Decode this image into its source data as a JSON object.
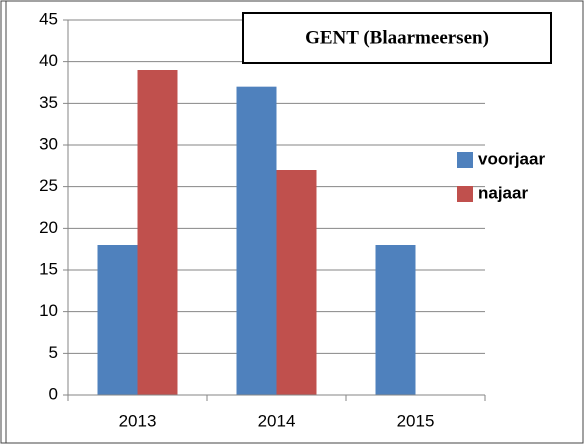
{
  "chart_data": {
    "type": "bar",
    "title": "GENT (Blaarmeersen)",
    "categories": [
      "2013",
      "2014",
      "2015"
    ],
    "series": [
      {
        "name": "voorjaar",
        "color": "#4f81bd",
        "values": [
          18,
          37,
          18
        ]
      },
      {
        "name": "najaar",
        "color": "#c0504d",
        "values": [
          39,
          27,
          null
        ]
      }
    ],
    "ylim": [
      0,
      45
    ],
    "yticks": [
      0,
      5,
      10,
      15,
      20,
      25,
      30,
      35,
      40,
      45
    ],
    "grid": true,
    "legend": "right"
  }
}
